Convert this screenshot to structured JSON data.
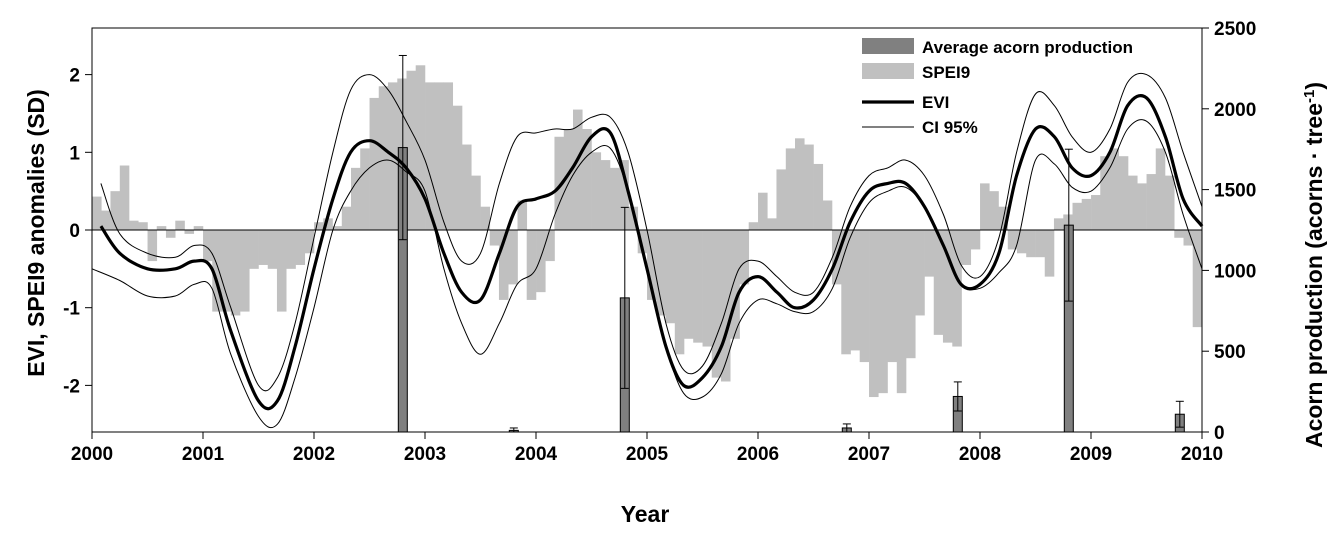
{
  "chart_data": {
    "type": "bar",
    "title": "",
    "xlabel": "Year",
    "ylabel_left": "EVI, SPEI9 anomalies (SD)",
    "ylabel_right": "Acorn production (acorns · tree",
    "ylabel_right_superscript": "-1",
    "ylabel_right_suffix": ")",
    "xlim": [
      2000,
      2010
    ],
    "ylim_left": [
      -2.6,
      2.6
    ],
    "ylim_right": [
      0,
      2500
    ],
    "x_ticks": [
      "2000",
      "2001",
      "2002",
      "2003",
      "2004",
      "2005",
      "2006",
      "2007",
      "2008",
      "2009",
      "2010"
    ],
    "y_left_ticks": [
      "-2",
      "-1",
      "0",
      "1",
      "2"
    ],
    "y_right_ticks": [
      "0",
      "500",
      "1000",
      "1500",
      "2000",
      "2500"
    ],
    "legend_position": "top-right",
    "legend": [
      "Average acorn production",
      "SPEI9",
      "EVI",
      "CI 95%"
    ],
    "colors": {
      "acorn": "#808080",
      "spei": "#c0c0c0",
      "evi": "#000000",
      "ci": "#000000"
    },
    "series": [
      {
        "name": "SPEI9",
        "kind": "bar",
        "axis": "left",
        "x": [
          2000.042,
          2000.125,
          2000.208,
          2000.292,
          2000.375,
          2000.458,
          2000.542,
          2000.625,
          2000.708,
          2000.792,
          2000.875,
          2000.958,
          2001.042,
          2001.125,
          2001.208,
          2001.292,
          2001.375,
          2001.458,
          2001.542,
          2001.625,
          2001.708,
          2001.792,
          2001.875,
          2001.958,
          2002.042,
          2002.125,
          2002.208,
          2002.292,
          2002.375,
          2002.458,
          2002.542,
          2002.625,
          2002.708,
          2002.792,
          2002.875,
          2002.958,
          2003.042,
          2003.125,
          2003.208,
          2003.292,
          2003.375,
          2003.458,
          2003.542,
          2003.625,
          2003.708,
          2003.792,
          2003.875,
          2003.958,
          2004.042,
          2004.125,
          2004.208,
          2004.292,
          2004.375,
          2004.458,
          2004.542,
          2004.625,
          2004.708,
          2004.792,
          2004.875,
          2004.958,
          2005.042,
          2005.125,
          2005.208,
          2005.292,
          2005.375,
          2005.458,
          2005.542,
          2005.625,
          2005.708,
          2005.792,
          2005.875,
          2005.958,
          2006.042,
          2006.125,
          2006.208,
          2006.292,
          2006.375,
          2006.458,
          2006.542,
          2006.625,
          2006.708,
          2006.792,
          2006.875,
          2006.958,
          2007.042,
          2007.125,
          2007.208,
          2007.292,
          2007.375,
          2007.458,
          2007.542,
          2007.625,
          2007.708,
          2007.792,
          2007.875,
          2007.958,
          2008.042,
          2008.125,
          2008.208,
          2008.292,
          2008.375,
          2008.458,
          2008.542,
          2008.625,
          2008.708,
          2008.792,
          2008.875,
          2008.958,
          2009.042,
          2009.125,
          2009.208,
          2009.292,
          2009.375,
          2009.458,
          2009.542,
          2009.625,
          2009.708,
          2009.792,
          2009.875,
          2009.958
        ],
        "values": [
          0.43,
          0.25,
          0.5,
          0.83,
          0.12,
          0.1,
          -0.4,
          0.05,
          -0.1,
          0.12,
          -0.05,
          0.05,
          -0.4,
          -1.05,
          -1.05,
          -1.1,
          -1.05,
          -0.5,
          -0.45,
          -0.5,
          -1.05,
          -0.5,
          -0.45,
          -0.3,
          0.1,
          0.15,
          0.05,
          0.3,
          0.8,
          1.05,
          1.7,
          1.85,
          1.9,
          1.95,
          2.05,
          2.12,
          1.9,
          1.9,
          1.9,
          1.6,
          1.1,
          0.7,
          0.3,
          -0.2,
          -0.9,
          -0.7,
          0.38,
          -0.9,
          -0.8,
          -0.4,
          1.2,
          1.3,
          1.55,
          1.3,
          1.0,
          0.9,
          0.8,
          0.9,
          0.3,
          -0.3,
          -0.9,
          -1.1,
          -1.2,
          -1.6,
          -1.4,
          -1.45,
          -1.5,
          -1.9,
          -1.95,
          -1.4,
          -0.7,
          0.1,
          0.48,
          0.15,
          0.78,
          1.05,
          1.18,
          1.1,
          0.85,
          0.38,
          -0.7,
          -1.6,
          -1.55,
          -1.7,
          -2.15,
          -2.1,
          -1.7,
          -2.1,
          -1.65,
          -1.1,
          -0.6,
          -1.35,
          -1.45,
          -1.5,
          -0.45,
          -0.25,
          0.6,
          0.5,
          0.3,
          -0.25,
          -0.3,
          -0.35,
          -0.35,
          -0.6,
          0.15,
          0.2,
          0.35,
          0.4,
          0.45,
          0.95,
          1.05,
          0.95,
          0.7,
          0.6,
          0.72,
          1.05,
          0.7,
          -0.1,
          -0.2,
          -1.25
        ]
      },
      {
        "name": "EVI",
        "kind": "line",
        "axis": "left",
        "x": [
          2000.08,
          2000.25,
          2000.5,
          2000.75,
          2000.92,
          2001.08,
          2001.25,
          2001.5,
          2001.67,
          2001.83,
          2002.0,
          2002.17,
          2002.33,
          2002.5,
          2002.67,
          2002.83,
          2003.0,
          2003.17,
          2003.33,
          2003.5,
          2003.67,
          2003.83,
          2004.0,
          2004.17,
          2004.33,
          2004.5,
          2004.67,
          2004.83,
          2005.0,
          2005.17,
          2005.33,
          2005.5,
          2005.67,
          2005.83,
          2006.0,
          2006.17,
          2006.33,
          2006.5,
          2006.67,
          2006.83,
          2007.0,
          2007.17,
          2007.33,
          2007.5,
          2007.67,
          2007.83,
          2008.0,
          2008.17,
          2008.33,
          2008.5,
          2008.67,
          2008.83,
          2009.0,
          2009.17,
          2009.33,
          2009.5,
          2009.67,
          2009.83,
          2010.0
        ],
        "values": [
          0.05,
          -0.3,
          -0.5,
          -0.5,
          -0.4,
          -0.5,
          -1.3,
          -2.2,
          -2.2,
          -1.5,
          -0.5,
          0.4,
          1.0,
          1.15,
          1.0,
          0.8,
          0.4,
          -0.3,
          -0.8,
          -0.9,
          -0.3,
          0.3,
          0.4,
          0.5,
          0.8,
          1.2,
          1.25,
          0.5,
          -0.5,
          -1.5,
          -2.0,
          -1.9,
          -1.5,
          -0.8,
          -0.6,
          -0.8,
          -1.0,
          -0.9,
          -0.5,
          0.1,
          0.5,
          0.6,
          0.6,
          0.3,
          -0.2,
          -0.7,
          -0.7,
          -0.3,
          0.7,
          1.3,
          1.2,
          0.8,
          0.7,
          1.0,
          1.6,
          1.7,
          1.2,
          0.4,
          0.05
        ]
      },
      {
        "name": "CI 95%",
        "kind": "line",
        "axis": "left",
        "x": [
          2000.08,
          2000.25,
          2000.5,
          2000.75,
          2000.92,
          2001.08,
          2001.25,
          2001.5,
          2001.67,
          2001.83,
          2002.0,
          2002.17,
          2002.33,
          2002.5,
          2002.67,
          2002.83,
          2003.0,
          2003.17,
          2003.33,
          2003.5,
          2003.67,
          2003.83,
          2004.0,
          2004.17,
          2004.33,
          2004.5,
          2004.67,
          2004.83,
          2005.0,
          2005.17,
          2005.33,
          2005.5,
          2005.67,
          2005.83,
          2006.0,
          2006.17,
          2006.33,
          2006.5,
          2006.67,
          2006.83,
          2007.0,
          2007.17,
          2007.33,
          2007.5,
          2007.67,
          2007.83,
          2008.0,
          2008.17,
          2008.33,
          2008.5,
          2008.67,
          2008.83,
          2009.0,
          2009.17,
          2009.33,
          2009.5,
          2009.67,
          2009.83,
          2010.0
        ],
        "values": [
          0.6,
          -0.05,
          -0.3,
          -0.35,
          -0.2,
          -0.3,
          -1.0,
          -2.0,
          -1.9,
          -1.2,
          -0.1,
          1.0,
          1.8,
          2.0,
          1.8,
          1.4,
          0.9,
          0.1,
          -0.4,
          -0.3,
          0.6,
          1.2,
          1.25,
          1.3,
          1.3,
          1.45,
          1.45,
          1.0,
          0.0,
          -1.2,
          -1.8,
          -1.75,
          -1.2,
          -0.5,
          -0.4,
          -0.6,
          -0.8,
          -0.8,
          -0.35,
          0.3,
          0.7,
          0.8,
          0.9,
          0.7,
          0.2,
          -0.45,
          -0.6,
          -0.1,
          1.0,
          1.75,
          1.6,
          1.2,
          1.0,
          1.3,
          1.9,
          2.0,
          1.7,
          1.0,
          0.3
        ]
      },
      {
        "name": "CI 95%",
        "kind": "line",
        "axis": "left",
        "x": [
          2000.0,
          2000.25,
          2000.5,
          2000.75,
          2000.92,
          2001.08,
          2001.25,
          2001.5,
          2001.67,
          2001.83,
          2002.0,
          2002.17,
          2002.33,
          2002.5,
          2002.67,
          2002.83,
          2003.0,
          2003.17,
          2003.33,
          2003.5,
          2003.67,
          2003.83,
          2004.0,
          2004.17,
          2004.33,
          2004.5,
          2004.67,
          2004.83,
          2005.0,
          2005.17,
          2005.33,
          2005.5,
          2005.67,
          2005.83,
          2006.0,
          2006.17,
          2006.33,
          2006.5,
          2006.67,
          2006.83,
          2007.0,
          2007.17,
          2007.33,
          2007.5,
          2007.67,
          2007.83,
          2008.0,
          2008.17,
          2008.33,
          2008.5,
          2008.67,
          2008.83,
          2009.0,
          2009.17,
          2009.33,
          2009.5,
          2009.67,
          2009.83,
          2010.0
        ],
        "values": [
          -0.5,
          -0.65,
          -0.85,
          -0.85,
          -0.7,
          -0.75,
          -1.6,
          -2.4,
          -2.5,
          -1.9,
          -1.0,
          0.0,
          0.5,
          0.8,
          0.9,
          0.75,
          0.5,
          -0.5,
          -1.2,
          -1.6,
          -1.2,
          -0.7,
          -0.5,
          0.2,
          0.7,
          1.0,
          1.05,
          0.5,
          -0.5,
          -1.5,
          -2.1,
          -2.15,
          -1.85,
          -1.2,
          -0.9,
          -0.95,
          -1.05,
          -1.05,
          -0.75,
          -0.1,
          0.35,
          0.5,
          0.55,
          0.3,
          -0.2,
          -0.7,
          -0.75,
          -0.55,
          -0.2,
          0.9,
          0.85,
          0.55,
          0.5,
          0.8,
          1.3,
          1.4,
          1.0,
          0.2,
          -0.5
        ]
      },
      {
        "name": "Average acorn production",
        "kind": "bar",
        "axis": "right",
        "x": [
          2000.8,
          2001.8,
          2002.8,
          2003.8,
          2004.8,
          2005.8,
          2006.8,
          2007.8,
          2008.8,
          2009.8
        ],
        "values": [
          0,
          0,
          1760,
          10,
          830,
          0,
          25,
          220,
          1280,
          110
        ],
        "error": [
          0,
          0,
          570,
          15,
          560,
          0,
          25,
          90,
          470,
          80
        ]
      }
    ]
  }
}
